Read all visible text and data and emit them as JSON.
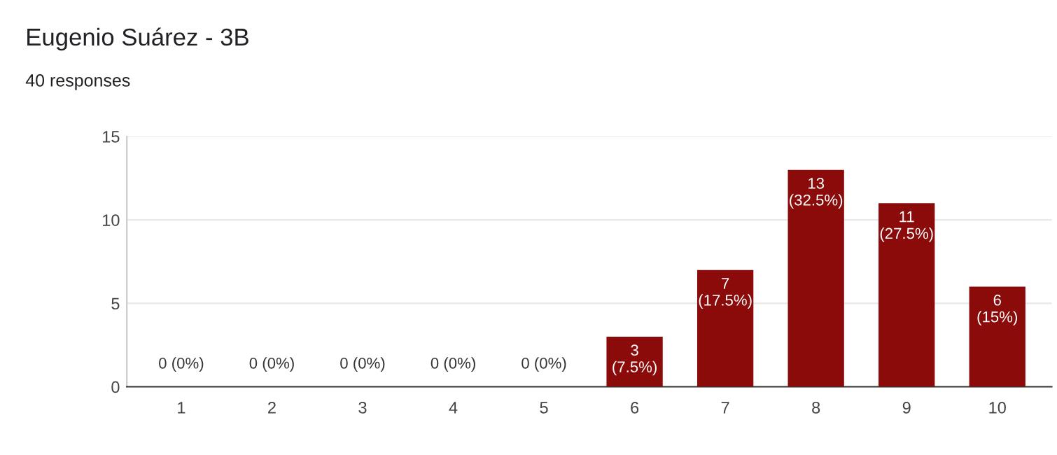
{
  "chart_data": {
    "type": "bar",
    "title": "Eugenio Suárez - 3B",
    "subtitle": "40 responses",
    "categories": [
      "1",
      "2",
      "3",
      "4",
      "5",
      "6",
      "7",
      "8",
      "9",
      "10"
    ],
    "values": [
      0,
      0,
      0,
      0,
      0,
      3,
      7,
      13,
      11,
      6
    ],
    "value_labels": [
      "0 (0%)",
      "0 (0%)",
      "0 (0%)",
      "0 (0%)",
      "0 (0%)",
      "3 (7.5%)",
      "7 (17.5%)",
      "13 (32.5%)",
      "11 (27.5%)",
      "6 (15%)"
    ],
    "color": "#8b0a0a",
    "ylim": [
      0,
      15
    ],
    "yticks": [
      0,
      5,
      10,
      15
    ],
    "grid": "y"
  }
}
